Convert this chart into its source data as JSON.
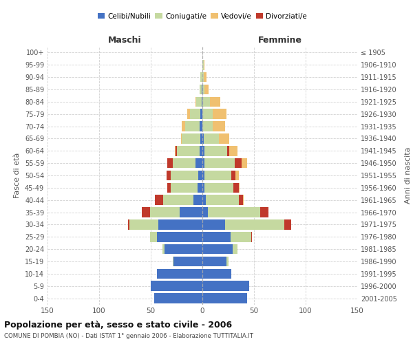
{
  "age_groups": [
    "100+",
    "95-99",
    "90-94",
    "85-89",
    "80-84",
    "75-79",
    "70-74",
    "65-69",
    "60-64",
    "55-59",
    "50-54",
    "45-49",
    "40-44",
    "35-39",
    "30-34",
    "25-29",
    "20-24",
    "15-19",
    "10-14",
    "5-9",
    "0-4"
  ],
  "birth_years": [
    "≤ 1905",
    "1906-1910",
    "1911-1915",
    "1916-1920",
    "1921-1925",
    "1926-1930",
    "1931-1935",
    "1936-1940",
    "1941-1945",
    "1946-1950",
    "1951-1955",
    "1956-1960",
    "1961-1965",
    "1966-1970",
    "1971-1975",
    "1976-1980",
    "1981-1985",
    "1986-1990",
    "1991-1995",
    "1996-2000",
    "2001-2005"
  ],
  "males": {
    "celibe": [
      0,
      0,
      0,
      1,
      1,
      2,
      3,
      2,
      3,
      7,
      4,
      5,
      9,
      22,
      43,
      44,
      37,
      28,
      44,
      50,
      47
    ],
    "coniugato": [
      0,
      0,
      2,
      2,
      5,
      10,
      14,
      18,
      22,
      22,
      27,
      26,
      29,
      29,
      28,
      7,
      2,
      1,
      0,
      0,
      0
    ],
    "vedovo": [
      0,
      0,
      0,
      0,
      1,
      3,
      3,
      1,
      1,
      0,
      0,
      0,
      0,
      0,
      0,
      0,
      0,
      0,
      0,
      0,
      0
    ],
    "divorziato": [
      0,
      0,
      0,
      0,
      0,
      0,
      0,
      0,
      1,
      5,
      4,
      3,
      8,
      8,
      1,
      0,
      0,
      0,
      0,
      0,
      0
    ]
  },
  "females": {
    "nubile": [
      0,
      0,
      0,
      0,
      0,
      0,
      0,
      1,
      2,
      2,
      2,
      2,
      3,
      5,
      22,
      27,
      29,
      23,
      28,
      45,
      43
    ],
    "coniugata": [
      0,
      1,
      1,
      2,
      7,
      10,
      10,
      15,
      22,
      29,
      26,
      28,
      32,
      51,
      57,
      20,
      5,
      2,
      0,
      0,
      0
    ],
    "vedova": [
      0,
      1,
      3,
      4,
      10,
      13,
      12,
      10,
      8,
      5,
      3,
      1,
      1,
      0,
      0,
      0,
      0,
      0,
      0,
      0,
      0
    ],
    "divorziata": [
      0,
      0,
      0,
      0,
      0,
      0,
      0,
      0,
      2,
      7,
      4,
      5,
      4,
      8,
      7,
      1,
      0,
      0,
      0,
      0,
      0
    ]
  },
  "colors": {
    "celibe_nubile": "#4472c4",
    "coniugato_a": "#c5d9a0",
    "vedovo_a": "#f0c070",
    "divorziato_a": "#c0392b"
  },
  "title": "Popolazione per età, sesso e stato civile - 2006",
  "subtitle": "COMUNE DI POMBIA (NO) - Dati ISTAT 1° gennaio 2006 - Elaborazione TUTTITALIA.IT",
  "xlabel_left": "Maschi",
  "xlabel_right": "Femmine",
  "ylabel_left": "Fasce di età",
  "ylabel_right": "Anni di nascita",
  "xlim": 150,
  "background_color": "#ffffff",
  "grid_color": "#cccccc"
}
